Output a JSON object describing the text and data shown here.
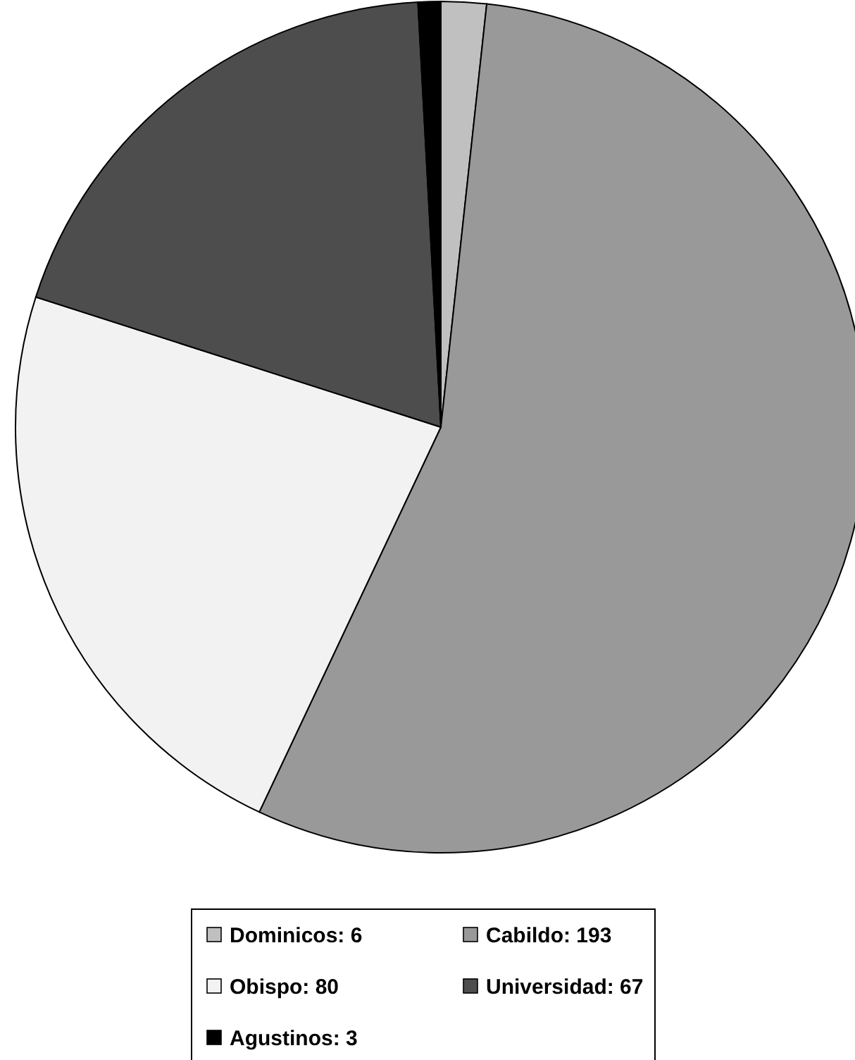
{
  "chart_data": {
    "type": "pie",
    "categories": [
      "Dominicos: 6",
      "Cabildo: 193",
      "Obispo: 80",
      "Universidad: 67",
      "Agustinos: 3"
    ],
    "values": [
      6,
      193,
      80,
      67,
      3
    ],
    "colors": [
      "#c0c0c0",
      "#999999",
      "#f2f2f2",
      "#4d4d4d",
      "#000000"
    ],
    "legend": "bottom"
  }
}
